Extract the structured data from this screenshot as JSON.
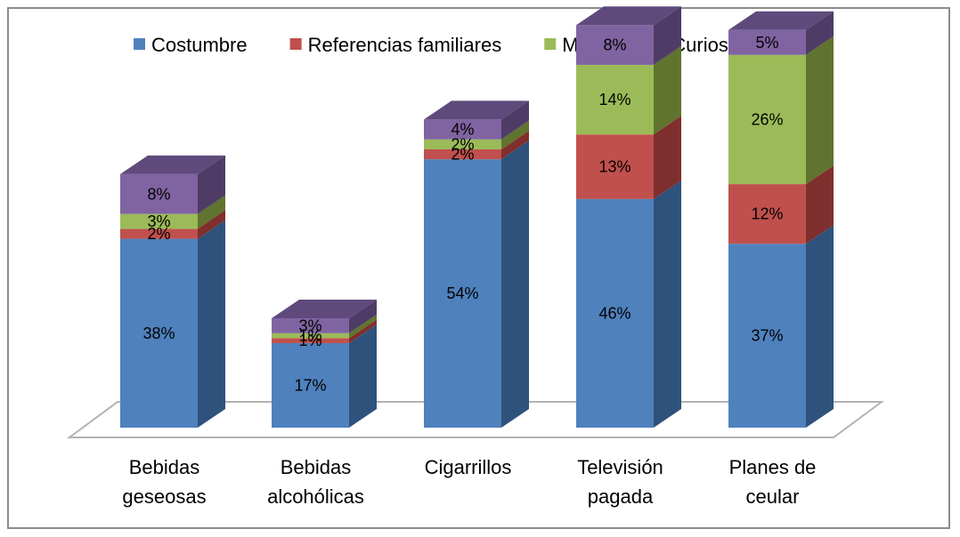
{
  "chart_data": {
    "type": "bar",
    "stacked": true,
    "three_d": true,
    "title": "",
    "xlabel": "",
    "ylabel": "",
    "legend_position": "top",
    "grid": false,
    "categories": [
      [
        "Bebidas",
        "geseosas"
      ],
      [
        "Bebidas",
        "alcohólicas"
      ],
      [
        "Cigarrillos"
      ],
      [
        "Televisión",
        "pagada"
      ],
      [
        "Planes de",
        "ceular"
      ]
    ],
    "series": [
      {
        "name": "Costumbre",
        "color": "#4f81bd",
        "side_color": "#2e527c",
        "top_color": "#4a6fa0",
        "values": [
          38,
          17,
          54,
          46,
          37
        ],
        "labels": [
          "38%",
          "17%",
          "54%",
          "46%",
          "37%"
        ]
      },
      {
        "name": "Referencias familiares",
        "color": "#c0504d",
        "side_color": "#7f2f2d",
        "top_color": "#a03f3c",
        "values": [
          2,
          1,
          2,
          13,
          12
        ],
        "labels": [
          "2%",
          "1%",
          "2%",
          "13%",
          "12%"
        ]
      },
      {
        "name": "Moda",
        "color": "#9bbb59",
        "side_color": "#60742f",
        "top_color": "#7f9a45",
        "values": [
          3,
          1,
          2,
          14,
          26
        ],
        "labels": [
          "3%",
          "1%",
          "2%",
          "14%",
          "26%"
        ]
      },
      {
        "name": "Curiosidad",
        "color": "#8064a2",
        "side_color": "#4f3c66",
        "top_color": "#5f4a7c",
        "values": [
          8,
          3,
          4,
          8,
          5
        ],
        "labels": [
          "8%",
          "3%",
          "4%",
          "8%",
          "5%"
        ]
      }
    ]
  }
}
